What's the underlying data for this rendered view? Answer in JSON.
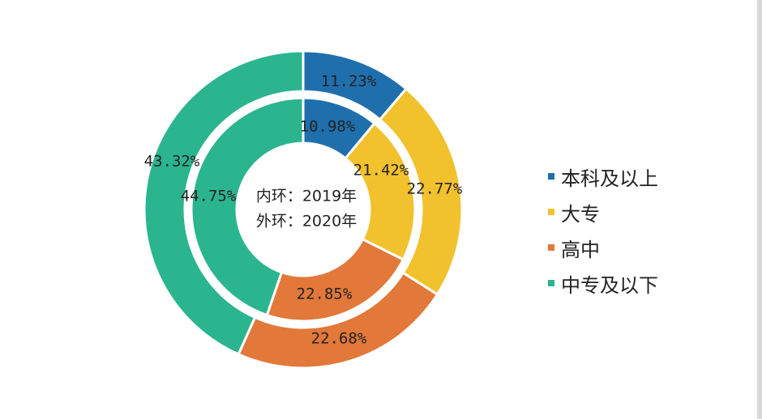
{
  "chart_data": {
    "type": "pie",
    "subtype": "nested-donut",
    "categories": [
      "本科及以上",
      "大专",
      "高中",
      "中专及以下"
    ],
    "colors": [
      "#1f6fad",
      "#f2c12e",
      "#e2783a",
      "#2bb58f"
    ],
    "series": [
      {
        "ring": "inner",
        "values": [
          10.98,
          21.42,
          22.85,
          44.75
        ],
        "labels": [
          "10.98%",
          "21.42%",
          "22.85%",
          "44.75%"
        ]
      },
      {
        "ring": "outer",
        "values": [
          11.23,
          22.77,
          22.68,
          43.32
        ],
        "labels": [
          "11.23%",
          "22.77%",
          "22.68%",
          "43.32%"
        ]
      }
    ],
    "center_text": [
      "内环：2019年",
      "外环：2020年"
    ],
    "legend_position": "right"
  }
}
